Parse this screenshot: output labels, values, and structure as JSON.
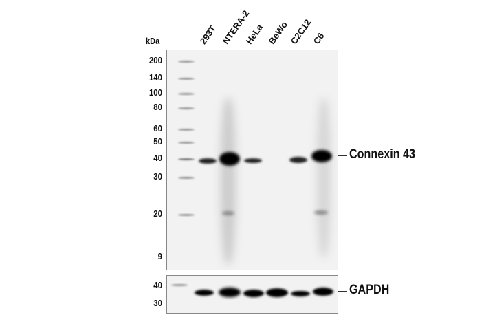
{
  "unit_label": "kDa",
  "lanes": [
    "293T",
    "NTERA-2",
    "HeLa",
    "BeWo",
    "C2C12",
    "C6"
  ],
  "top_panel": {
    "markers": [
      "200",
      "140",
      "100",
      "80",
      "60",
      "50",
      "40",
      "30",
      "20",
      "9"
    ],
    "target": "Connexin 43"
  },
  "bottom_panel": {
    "markers": [
      "40",
      "30"
    ],
    "target": "GAPDH"
  }
}
